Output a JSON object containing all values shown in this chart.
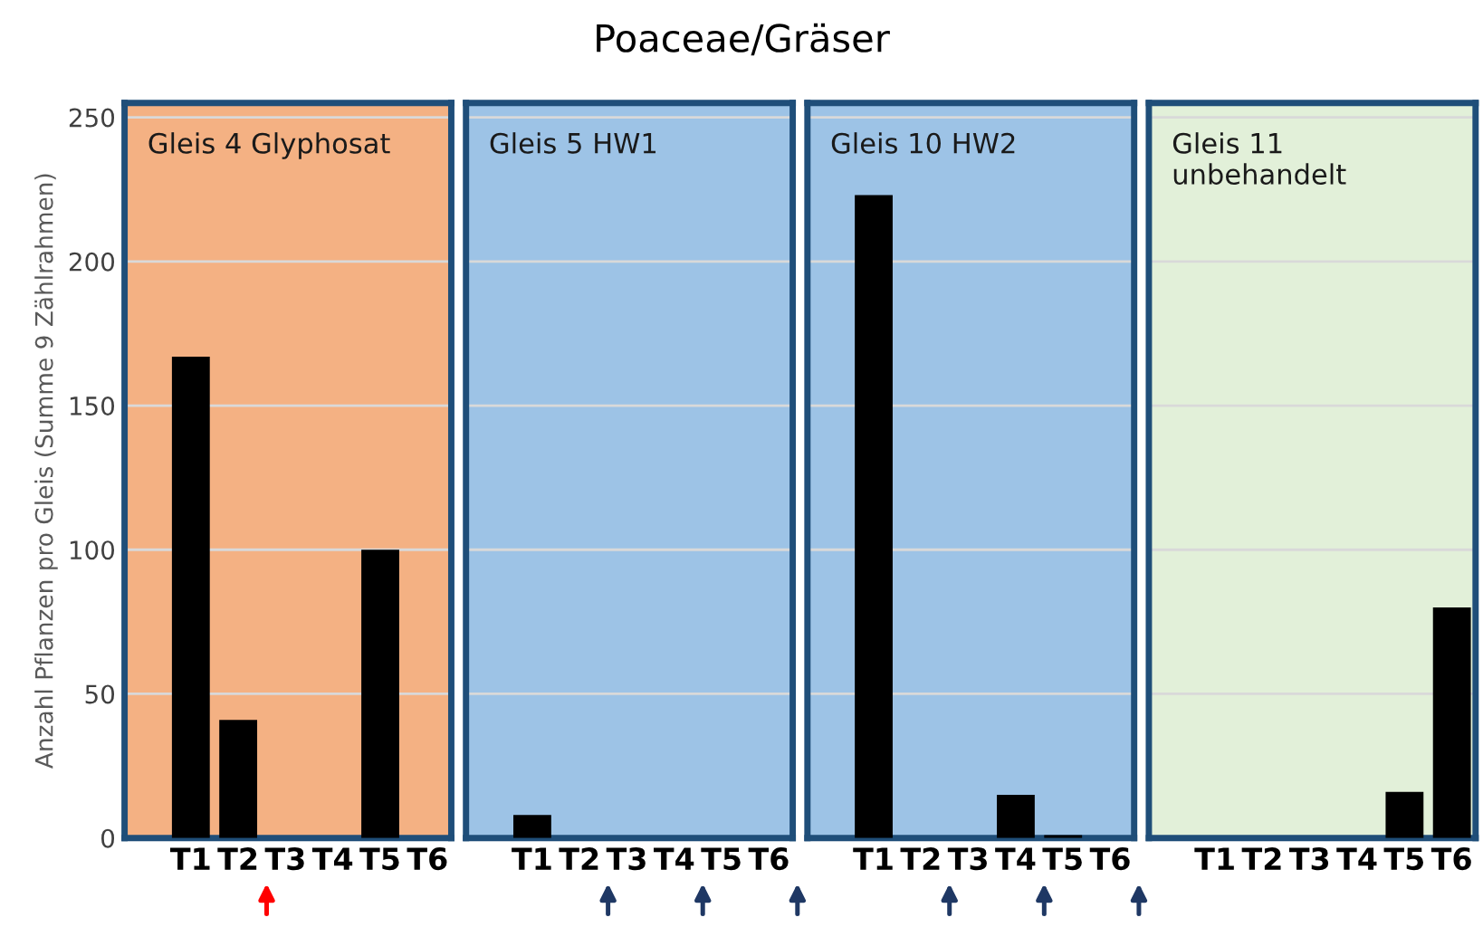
{
  "chart_data": [
    {
      "type": "bar",
      "subtitle": "Gleis 4 Glyphosat",
      "ylabel": "Anzahl Pflanzen pro Gleis (Summe 9 Zählrahmen)",
      "categories": [
        "T1",
        "T2",
        "T3",
        "T4",
        "T5",
        "T6"
      ],
      "values": [
        167,
        41,
        0,
        0,
        100,
        0
      ],
      "color": "#000000",
      "ylim": [
        0,
        255
      ],
      "yticks": [
        0,
        50,
        100,
        150,
        200,
        250
      ],
      "grid": "y",
      "bands": [
        {
          "axis": "y",
          "from": 0,
          "to": 255,
          "color": "#f4b183"
        }
      ]
    },
    {
      "type": "bar",
      "title": "Poaceae/Gräser",
      "subtitle": "Gleis 5 HW1",
      "categories": [
        "T1",
        "T2",
        "T3",
        "T4",
        "T5",
        "T6"
      ],
      "values": [
        8,
        0,
        0,
        0,
        0,
        0
      ],
      "color": "#000000",
      "ylim": [
        0,
        255
      ],
      "tick_labels": "x",
      "grid": "y",
      "bands": [
        {
          "axis": "y",
          "from": 0,
          "to": 255,
          "color": "#9dc3e6"
        }
      ]
    },
    {
      "type": "bar",
      "subtitle": "Gleis 10 HW2",
      "categories": [
        "T1",
        "T2",
        "T3",
        "T4",
        "T5",
        "T6"
      ],
      "values": [
        223,
        0,
        0,
        15,
        1,
        0
      ],
      "color": "#000000",
      "ylim": [
        0,
        255
      ],
      "tick_labels": "x",
      "grid": "y",
      "bands": [
        {
          "axis": "y",
          "from": 0,
          "to": 255,
          "color": "#9dc3e6"
        }
      ]
    },
    {
      "type": "bar",
      "subtitle": "Gleis 11\nunbehandelt",
      "categories": [
        "T1",
        "T2",
        "T3",
        "T4",
        "T5",
        "T6"
      ],
      "values": [
        0,
        0,
        0,
        0,
        16,
        80
      ],
      "color": "#000000",
      "ylim": [
        0,
        255
      ],
      "tick_labels": "x",
      "grid": "y",
      "bands": [
        {
          "axis": "y",
          "from": 0,
          "to": 255,
          "color": "#e2f0d9"
        }
      ]
    }
  ]
}
